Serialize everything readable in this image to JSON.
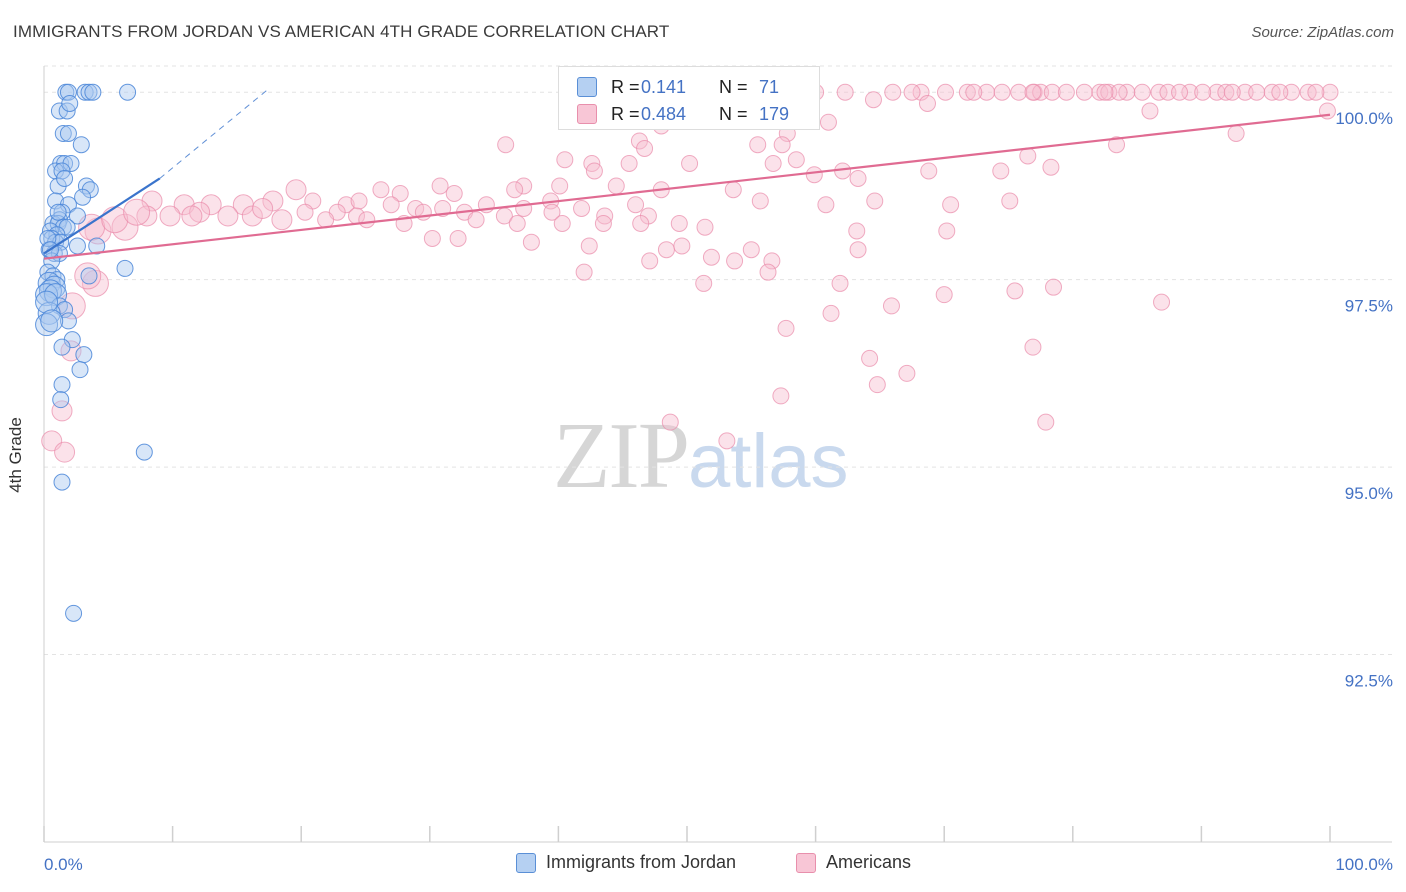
{
  "header": {
    "title": "IMMIGRANTS FROM JORDAN VS AMERICAN 4TH GRADE CORRELATION CHART",
    "source": "Source: ZipAtlas.com"
  },
  "watermark": {
    "zip": "ZIP",
    "atlas": "atlas"
  },
  "legend": {
    "r_label": "R =",
    "n_label": "N =",
    "series": [
      {
        "name": "Immigrants from Jordan",
        "r": "0.141",
        "n": "71"
      },
      {
        "name": "Americans",
        "r": "0.484",
        "n": "179"
      }
    ]
  },
  "colors": {
    "jordan_fill": "#a9c8f0",
    "jordan_stroke": "#4a86d8",
    "jordan_line": "#3a74cc",
    "americans_fill": "#f7bfd0",
    "americans_stroke": "#e98aa9",
    "americans_line": "#e06b92",
    "grid": "#e3e3e3",
    "axis_text": "#4472c4"
  },
  "chart_data": {
    "type": "scatter",
    "title": "IMMIGRANTS FROM JORDAN VS AMERICAN 4TH GRADE CORRELATION CHART",
    "xlabel": "",
    "ylabel": "4th Grade",
    "xlim": [
      0,
      100
    ],
    "ylim": [
      90.0,
      100.35
    ],
    "x_tick_labels": [
      "0.0%",
      "100.0%"
    ],
    "y_ticks": [
      {
        "value": 92.5,
        "label": "92.5%"
      },
      {
        "value": 95.0,
        "label": "95.0%"
      },
      {
        "value": 97.5,
        "label": "97.5%"
      },
      {
        "value": 100.0,
        "label": "100.0%"
      }
    ],
    "grid": true,
    "legend_position": "top-center",
    "series": [
      {
        "name": "Immigrants from Jordan",
        "r": 0.141,
        "n": 71,
        "trend": {
          "x0": 0.0,
          "y0": 97.85,
          "x1": 9.0,
          "y1": 98.85,
          "dash_to_x": 17.5,
          "dash_to_y": 100.05
        },
        "points": [
          [
            1.7,
            100.0
          ],
          [
            1.9,
            100.0
          ],
          [
            3.2,
            100.0
          ],
          [
            3.5,
            100.0
          ],
          [
            3.8,
            100.0
          ],
          [
            6.5,
            100.0
          ],
          [
            1.2,
            99.75
          ],
          [
            1.8,
            99.75
          ],
          [
            2.0,
            99.85
          ],
          [
            1.5,
            99.45
          ],
          [
            1.9,
            99.45
          ],
          [
            2.9,
            99.3
          ],
          [
            1.3,
            99.05
          ],
          [
            1.6,
            99.05
          ],
          [
            2.1,
            99.05
          ],
          [
            0.9,
            98.95
          ],
          [
            1.4,
            98.95
          ],
          [
            1.1,
            98.75
          ],
          [
            3.3,
            98.75
          ],
          [
            3.6,
            98.7
          ],
          [
            3.0,
            98.6
          ],
          [
            0.9,
            98.55
          ],
          [
            1.9,
            98.5
          ],
          [
            1.4,
            98.4
          ],
          [
            2.6,
            98.35
          ],
          [
            1.2,
            98.3
          ],
          [
            0.7,
            98.25
          ],
          [
            1.1,
            98.25
          ],
          [
            1.5,
            98.2
          ],
          [
            1.8,
            98.2
          ],
          [
            0.5,
            98.15
          ],
          [
            1.0,
            98.1
          ],
          [
            0.6,
            98.05
          ],
          [
            0.9,
            98.0
          ],
          [
            1.3,
            98.0
          ],
          [
            2.6,
            97.95
          ],
          [
            4.1,
            97.95
          ],
          [
            0.4,
            97.9
          ],
          [
            0.8,
            97.85
          ],
          [
            1.2,
            97.85
          ],
          [
            0.6,
            97.75
          ],
          [
            6.3,
            97.65
          ],
          [
            0.3,
            97.6
          ],
          [
            0.7,
            97.55
          ],
          [
            1.0,
            97.5
          ],
          [
            3.5,
            97.55
          ],
          [
            0.4,
            97.45
          ],
          [
            0.8,
            97.4
          ],
          [
            0.5,
            97.35
          ],
          [
            0.2,
            97.3
          ],
          [
            0.9,
            97.3
          ],
          [
            1.2,
            97.15
          ],
          [
            1.6,
            97.1
          ],
          [
            0.4,
            97.05
          ],
          [
            1.9,
            96.95
          ],
          [
            0.2,
            96.9
          ],
          [
            2.2,
            96.7
          ],
          [
            1.4,
            96.6
          ],
          [
            3.1,
            96.5
          ],
          [
            2.8,
            96.3
          ],
          [
            1.4,
            96.1
          ],
          [
            1.3,
            95.9
          ],
          [
            7.8,
            95.2
          ],
          [
            1.4,
            94.8
          ],
          [
            2.3,
            93.05
          ],
          [
            0.3,
            98.05
          ],
          [
            0.5,
            97.9
          ],
          [
            1.1,
            98.4
          ],
          [
            0.2,
            97.2
          ],
          [
            0.6,
            96.95
          ],
          [
            1.6,
            98.85
          ]
        ]
      },
      {
        "name": "Americans",
        "r": 0.484,
        "n": 179,
        "trend": {
          "x0": 0.0,
          "y0": 97.78,
          "x1": 100.0,
          "y1": 99.7
        },
        "points": [
          [
            60.0,
            100.0
          ],
          [
            62.3,
            100.0
          ],
          [
            68.2,
            100.0
          ],
          [
            71.8,
            100.0
          ],
          [
            73.3,
            100.0
          ],
          [
            77.0,
            100.0
          ],
          [
            77.5,
            100.0
          ],
          [
            80.9,
            100.0
          ],
          [
            82.1,
            100.0
          ],
          [
            84.2,
            100.0
          ],
          [
            85.4,
            100.0
          ],
          [
            89.1,
            100.0
          ],
          [
            91.2,
            100.0
          ],
          [
            93.4,
            100.0
          ],
          [
            95.5,
            100.0
          ],
          [
            97.0,
            100.0
          ],
          [
            98.3,
            100.0
          ],
          [
            100.0,
            100.0
          ],
          [
            67.5,
            100.0
          ],
          [
            66.0,
            100.0
          ],
          [
            70.1,
            100.0
          ],
          [
            72.3,
            100.0
          ],
          [
            74.5,
            100.0
          ],
          [
            75.8,
            100.0
          ],
          [
            78.4,
            100.0
          ],
          [
            79.5,
            100.0
          ],
          [
            82.8,
            100.0
          ],
          [
            83.6,
            100.0
          ],
          [
            86.7,
            100.0
          ],
          [
            87.4,
            100.0
          ],
          [
            88.3,
            100.0
          ],
          [
            90.1,
            100.0
          ],
          [
            91.9,
            100.0
          ],
          [
            94.3,
            100.0
          ],
          [
            96.1,
            100.0
          ],
          [
            98.9,
            100.0
          ],
          [
            64.5,
            99.9
          ],
          [
            68.7,
            99.85
          ],
          [
            76.9,
            100.0
          ],
          [
            82.5,
            100.0
          ],
          [
            92.4,
            100.0
          ],
          [
            86.0,
            99.75
          ],
          [
            99.8,
            99.75
          ],
          [
            48.0,
            99.55
          ],
          [
            61.0,
            99.6
          ],
          [
            57.8,
            99.45
          ],
          [
            92.7,
            99.45
          ],
          [
            46.3,
            99.35
          ],
          [
            57.4,
            99.3
          ],
          [
            55.5,
            99.3
          ],
          [
            83.4,
            99.3
          ],
          [
            35.9,
            99.3
          ],
          [
            46.7,
            99.25
          ],
          [
            76.5,
            99.15
          ],
          [
            58.5,
            99.1
          ],
          [
            45.5,
            99.05
          ],
          [
            42.6,
            99.05
          ],
          [
            40.5,
            99.1
          ],
          [
            42.8,
            98.95
          ],
          [
            56.7,
            99.05
          ],
          [
            50.2,
            99.05
          ],
          [
            62.1,
            98.95
          ],
          [
            63.3,
            98.85
          ],
          [
            68.8,
            98.95
          ],
          [
            74.4,
            98.95
          ],
          [
            78.3,
            99.0
          ],
          [
            59.9,
            98.9
          ],
          [
            37.3,
            98.75
          ],
          [
            40.1,
            98.75
          ],
          [
            44.5,
            98.75
          ],
          [
            48.0,
            98.7
          ],
          [
            53.6,
            98.7
          ],
          [
            19.6,
            98.7
          ],
          [
            26.2,
            98.7
          ],
          [
            27.7,
            98.65
          ],
          [
            30.8,
            98.75
          ],
          [
            31.9,
            98.65
          ],
          [
            36.6,
            98.7
          ],
          [
            20.9,
            98.55
          ],
          [
            23.5,
            98.5
          ],
          [
            24.5,
            98.55
          ],
          [
            27.0,
            98.5
          ],
          [
            28.9,
            98.45
          ],
          [
            31.0,
            98.45
          ],
          [
            34.4,
            98.5
          ],
          [
            37.3,
            98.45
          ],
          [
            39.4,
            98.55
          ],
          [
            41.8,
            98.45
          ],
          [
            46.0,
            98.5
          ],
          [
            55.7,
            98.55
          ],
          [
            60.8,
            98.5
          ],
          [
            64.6,
            98.55
          ],
          [
            70.5,
            98.5
          ],
          [
            75.1,
            98.55
          ],
          [
            8.4,
            98.55
          ],
          [
            10.9,
            98.5
          ],
          [
            13.0,
            98.5
          ],
          [
            15.5,
            98.5
          ],
          [
            17.8,
            98.55
          ],
          [
            16.2,
            98.35
          ],
          [
            20.3,
            98.4
          ],
          [
            22.8,
            98.4
          ],
          [
            24.3,
            98.35
          ],
          [
            29.5,
            98.4
          ],
          [
            32.7,
            98.4
          ],
          [
            35.8,
            98.35
          ],
          [
            39.5,
            98.4
          ],
          [
            43.6,
            98.35
          ],
          [
            47.0,
            98.35
          ],
          [
            8.0,
            98.35
          ],
          [
            9.8,
            98.35
          ],
          [
            12.1,
            98.4
          ],
          [
            14.3,
            98.35
          ],
          [
            18.5,
            98.3
          ],
          [
            21.9,
            98.3
          ],
          [
            25.1,
            98.3
          ],
          [
            28.0,
            98.25
          ],
          [
            33.6,
            98.3
          ],
          [
            36.8,
            98.25
          ],
          [
            40.3,
            98.25
          ],
          [
            43.5,
            98.25
          ],
          [
            46.4,
            98.25
          ],
          [
            49.4,
            98.25
          ],
          [
            51.4,
            98.2
          ],
          [
            63.2,
            98.15
          ],
          [
            70.2,
            98.15
          ],
          [
            6.3,
            98.2
          ],
          [
            4.2,
            98.15
          ],
          [
            3.7,
            98.2
          ],
          [
            30.2,
            98.05
          ],
          [
            32.2,
            98.05
          ],
          [
            37.9,
            98.0
          ],
          [
            42.4,
            97.95
          ],
          [
            48.4,
            97.9
          ],
          [
            49.6,
            97.95
          ],
          [
            63.3,
            97.9
          ],
          [
            55.0,
            97.9
          ],
          [
            51.9,
            97.8
          ],
          [
            53.7,
            97.75
          ],
          [
            47.1,
            97.75
          ],
          [
            56.6,
            97.75
          ],
          [
            56.3,
            97.6
          ],
          [
            42.0,
            97.6
          ],
          [
            61.9,
            97.45
          ],
          [
            51.3,
            97.45
          ],
          [
            78.5,
            97.4
          ],
          [
            70.0,
            97.3
          ],
          [
            75.5,
            97.35
          ],
          [
            65.9,
            97.15
          ],
          [
            61.2,
            97.05
          ],
          [
            86.9,
            97.2
          ],
          [
            57.7,
            96.85
          ],
          [
            76.9,
            96.6
          ],
          [
            64.2,
            96.45
          ],
          [
            67.1,
            96.25
          ],
          [
            64.8,
            96.1
          ],
          [
            57.3,
            95.95
          ],
          [
            48.7,
            95.6
          ],
          [
            77.9,
            95.6
          ],
          [
            53.1,
            95.35
          ],
          [
            4.0,
            97.45
          ],
          [
            3.4,
            97.55
          ],
          [
            2.2,
            97.15
          ],
          [
            2.1,
            96.55
          ],
          [
            1.4,
            95.75
          ],
          [
            0.6,
            95.35
          ],
          [
            1.6,
            95.2
          ],
          [
            5.5,
            98.3
          ],
          [
            7.2,
            98.4
          ],
          [
            11.5,
            98.35
          ],
          [
            17.0,
            98.45
          ]
        ]
      }
    ]
  }
}
